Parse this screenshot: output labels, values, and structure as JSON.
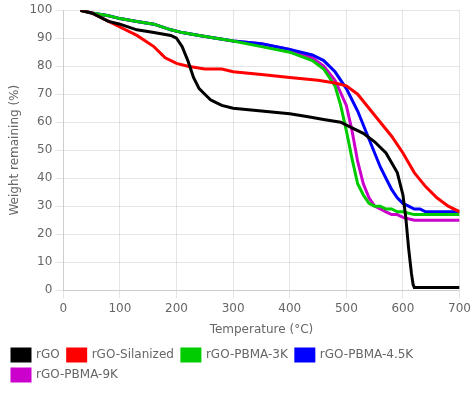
{
  "chart_data": {
    "type": "line",
    "xlabel": "Temperature (°C)",
    "ylabel": "Weight remaining (%)",
    "xlim": [
      0,
      700
    ],
    "ylim": [
      0,
      100
    ],
    "xticks": [
      0,
      100,
      200,
      300,
      400,
      500,
      600,
      700
    ],
    "yticks": [
      0,
      10,
      20,
      30,
      40,
      50,
      60,
      70,
      80,
      90,
      100
    ],
    "grid": true,
    "legend": "lower left",
    "series": [
      {
        "name": "rGO",
        "color": "#000000",
        "x": [
          30,
          50,
          80,
          100,
          130,
          160,
          190,
          200,
          210,
          220,
          230,
          240,
          250,
          260,
          270,
          280,
          300,
          350,
          400,
          430,
          460,
          490,
          510,
          530,
          550,
          570,
          590,
          600,
          605,
          610,
          615,
          618,
          620,
          625,
          630,
          650,
          700
        ],
        "values": [
          100,
          99,
          96,
          95,
          93,
          92,
          91,
          90,
          87,
          82,
          76,
          72,
          70,
          68,
          67,
          66,
          65,
          64,
          63,
          62,
          61,
          60,
          58,
          56,
          53,
          49,
          42,
          34,
          26,
          15,
          6,
          2,
          1,
          1,
          1,
          1,
          1
        ]
      },
      {
        "name": "rGO-Silanized",
        "color": "#ff0000",
        "x": [
          30,
          50,
          80,
          100,
          130,
          160,
          180,
          200,
          220,
          250,
          280,
          300,
          350,
          400,
          450,
          480,
          500,
          520,
          540,
          560,
          580,
          600,
          620,
          640,
          660,
          680,
          700
        ],
        "values": [
          100,
          99,
          96,
          94,
          91,
          87,
          83,
          81,
          80,
          79,
          79,
          78,
          77,
          76,
          75,
          74,
          73,
          70,
          65,
          60,
          55,
          49,
          42,
          37,
          33,
          30,
          28
        ]
      },
      {
        "name": "rGO-PBMA-3K",
        "color": "#00cc00",
        "x": [
          30,
          50,
          80,
          100,
          130,
          160,
          190,
          210,
          240,
          270,
          300,
          350,
          400,
          440,
          460,
          480,
          490,
          500,
          510,
          520,
          530,
          540,
          550,
          560,
          570,
          580,
          590,
          600,
          620,
          650,
          700
        ],
        "values": [
          100,
          99,
          98,
          97,
          96,
          95,
          93,
          92,
          91,
          90,
          89,
          87,
          85,
          82,
          79,
          73,
          66,
          57,
          47,
          38,
          34,
          31,
          30,
          30,
          29,
          29,
          28,
          28,
          27,
          27,
          27
        ]
      },
      {
        "name": "rGO-PBMA-4.5K",
        "color": "#0000ff",
        "x": [
          30,
          50,
          80,
          100,
          130,
          160,
          190,
          210,
          240,
          270,
          300,
          350,
          400,
          440,
          460,
          480,
          500,
          520,
          540,
          560,
          570,
          580,
          590,
          600,
          610,
          620,
          630,
          640,
          660,
          680,
          700
        ],
        "values": [
          100,
          99,
          98,
          97,
          96,
          95,
          93,
          92,
          91,
          90,
          89,
          88,
          86,
          84,
          82,
          78,
          72,
          64,
          54,
          44,
          40,
          36,
          33,
          31,
          30,
          29,
          29,
          28,
          28,
          28,
          28
        ]
      },
      {
        "name": "rGO-PBMA-9K",
        "color": "#cc00cc",
        "x": [
          30,
          50,
          80,
          100,
          130,
          160,
          190,
          210,
          240,
          270,
          300,
          350,
          400,
          440,
          460,
          480,
          500,
          510,
          520,
          530,
          540,
          550,
          560,
          570,
          580,
          590,
          600,
          620,
          650,
          700
        ],
        "values": [
          100,
          99,
          98,
          97,
          96,
          95,
          93,
          92,
          91,
          90,
          89,
          88,
          86,
          83,
          80,
          75,
          66,
          57,
          46,
          38,
          33,
          30,
          29,
          28,
          27,
          27,
          26,
          25,
          25,
          25
        ]
      }
    ]
  }
}
